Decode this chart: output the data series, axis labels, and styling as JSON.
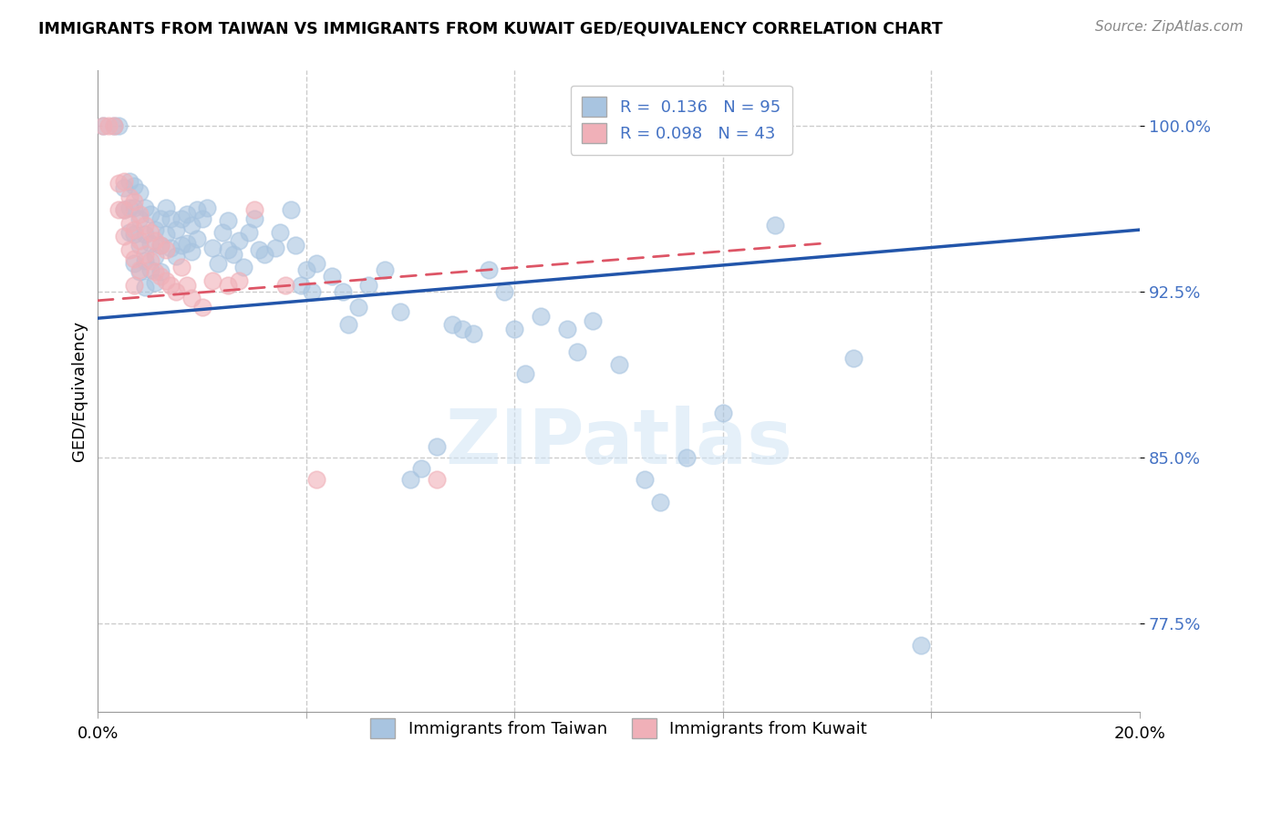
{
  "title": "IMMIGRANTS FROM TAIWAN VS IMMIGRANTS FROM KUWAIT GED/EQUIVALENCY CORRELATION CHART",
  "source": "Source: ZipAtlas.com",
  "ylabel": "GED/Equivalency",
  "xlim": [
    0.0,
    0.2
  ],
  "ylim": [
    0.735,
    1.025
  ],
  "yticks": [
    0.775,
    0.85,
    0.925,
    1.0
  ],
  "ytick_labels": [
    "77.5%",
    "85.0%",
    "92.5%",
    "100.0%"
  ],
  "taiwan_R": 0.136,
  "taiwan_N": 95,
  "kuwait_R": 0.098,
  "kuwait_N": 43,
  "taiwan_color": "#a8c4e0",
  "kuwait_color": "#f0b0b8",
  "taiwan_line_color": "#2255aa",
  "kuwait_line_color": "#dd5566",
  "taiwan_line_x": [
    0.0,
    0.2
  ],
  "taiwan_line_y": [
    0.913,
    0.953
  ],
  "kuwait_line_x": [
    0.0,
    0.14
  ],
  "kuwait_line_y": [
    0.921,
    0.947
  ],
  "taiwan_scatter": [
    [
      0.001,
      1.0
    ],
    [
      0.003,
      1.0
    ],
    [
      0.004,
      1.0
    ],
    [
      0.005,
      0.972
    ],
    [
      0.005,
      0.962
    ],
    [
      0.006,
      0.975
    ],
    [
      0.006,
      0.963
    ],
    [
      0.006,
      0.952
    ],
    [
      0.007,
      0.973
    ],
    [
      0.007,
      0.963
    ],
    [
      0.007,
      0.951
    ],
    [
      0.007,
      0.938
    ],
    [
      0.008,
      0.97
    ],
    [
      0.008,
      0.958
    ],
    [
      0.008,
      0.946
    ],
    [
      0.008,
      0.934
    ],
    [
      0.009,
      0.963
    ],
    [
      0.009,
      0.951
    ],
    [
      0.009,
      0.939
    ],
    [
      0.009,
      0.927
    ],
    [
      0.01,
      0.96
    ],
    [
      0.01,
      0.947
    ],
    [
      0.01,
      0.935
    ],
    [
      0.011,
      0.953
    ],
    [
      0.011,
      0.941
    ],
    [
      0.011,
      0.929
    ],
    [
      0.012,
      0.958
    ],
    [
      0.012,
      0.946
    ],
    [
      0.012,
      0.934
    ],
    [
      0.013,
      0.963
    ],
    [
      0.013,
      0.951
    ],
    [
      0.014,
      0.958
    ],
    [
      0.014,
      0.945
    ],
    [
      0.015,
      0.953
    ],
    [
      0.015,
      0.941
    ],
    [
      0.016,
      0.958
    ],
    [
      0.016,
      0.946
    ],
    [
      0.017,
      0.96
    ],
    [
      0.017,
      0.947
    ],
    [
      0.018,
      0.955
    ],
    [
      0.018,
      0.943
    ],
    [
      0.019,
      0.962
    ],
    [
      0.019,
      0.949
    ],
    [
      0.02,
      0.958
    ],
    [
      0.021,
      0.963
    ],
    [
      0.022,
      0.945
    ],
    [
      0.023,
      0.938
    ],
    [
      0.024,
      0.952
    ],
    [
      0.025,
      0.957
    ],
    [
      0.025,
      0.944
    ],
    [
      0.026,
      0.942
    ],
    [
      0.027,
      0.948
    ],
    [
      0.028,
      0.936
    ],
    [
      0.029,
      0.952
    ],
    [
      0.03,
      0.958
    ],
    [
      0.031,
      0.944
    ],
    [
      0.032,
      0.942
    ],
    [
      0.034,
      0.945
    ],
    [
      0.035,
      0.952
    ],
    [
      0.037,
      0.962
    ],
    [
      0.038,
      0.946
    ],
    [
      0.039,
      0.928
    ],
    [
      0.04,
      0.935
    ],
    [
      0.041,
      0.925
    ],
    [
      0.042,
      0.938
    ],
    [
      0.045,
      0.932
    ],
    [
      0.047,
      0.925
    ],
    [
      0.048,
      0.91
    ],
    [
      0.05,
      0.918
    ],
    [
      0.052,
      0.928
    ],
    [
      0.055,
      0.935
    ],
    [
      0.058,
      0.916
    ],
    [
      0.06,
      0.84
    ],
    [
      0.062,
      0.845
    ],
    [
      0.065,
      0.855
    ],
    [
      0.068,
      0.91
    ],
    [
      0.07,
      0.908
    ],
    [
      0.072,
      0.906
    ],
    [
      0.075,
      0.935
    ],
    [
      0.078,
      0.925
    ],
    [
      0.08,
      0.908
    ],
    [
      0.082,
      0.888
    ],
    [
      0.085,
      0.914
    ],
    [
      0.09,
      0.908
    ],
    [
      0.092,
      0.898
    ],
    [
      0.095,
      0.912
    ],
    [
      0.1,
      0.892
    ],
    [
      0.105,
      0.84
    ],
    [
      0.108,
      0.83
    ],
    [
      0.113,
      0.85
    ],
    [
      0.12,
      0.87
    ],
    [
      0.13,
      0.955
    ],
    [
      0.145,
      0.895
    ],
    [
      0.158,
      0.765
    ]
  ],
  "kuwait_scatter": [
    [
      0.001,
      1.0
    ],
    [
      0.002,
      1.0
    ],
    [
      0.003,
      1.0
    ],
    [
      0.004,
      0.974
    ],
    [
      0.004,
      0.962
    ],
    [
      0.005,
      0.975
    ],
    [
      0.005,
      0.962
    ],
    [
      0.005,
      0.95
    ],
    [
      0.006,
      0.968
    ],
    [
      0.006,
      0.956
    ],
    [
      0.006,
      0.944
    ],
    [
      0.007,
      0.966
    ],
    [
      0.007,
      0.953
    ],
    [
      0.007,
      0.94
    ],
    [
      0.007,
      0.928
    ],
    [
      0.008,
      0.96
    ],
    [
      0.008,
      0.948
    ],
    [
      0.008,
      0.935
    ],
    [
      0.009,
      0.955
    ],
    [
      0.009,
      0.942
    ],
    [
      0.01,
      0.952
    ],
    [
      0.01,
      0.939
    ],
    [
      0.011,
      0.948
    ],
    [
      0.011,
      0.934
    ],
    [
      0.012,
      0.946
    ],
    [
      0.012,
      0.932
    ],
    [
      0.013,
      0.944
    ],
    [
      0.013,
      0.93
    ],
    [
      0.014,
      0.928
    ],
    [
      0.015,
      0.925
    ],
    [
      0.016,
      0.936
    ],
    [
      0.017,
      0.928
    ],
    [
      0.018,
      0.922
    ],
    [
      0.02,
      0.918
    ],
    [
      0.022,
      0.93
    ],
    [
      0.025,
      0.928
    ],
    [
      0.027,
      0.93
    ],
    [
      0.03,
      0.962
    ],
    [
      0.036,
      0.928
    ],
    [
      0.042,
      0.84
    ],
    [
      0.065,
      0.84
    ]
  ],
  "watermark": "ZIPatlas",
  "grid_color": "#cccccc",
  "background_color": "#ffffff"
}
